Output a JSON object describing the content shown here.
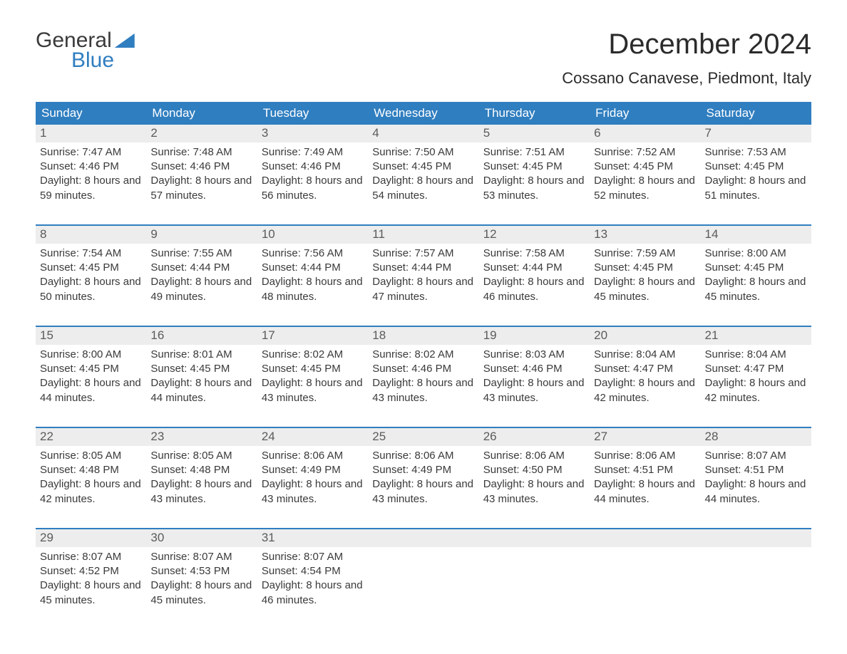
{
  "logo": {
    "top": "General",
    "bottom": "Blue"
  },
  "title": "December 2024",
  "location": "Cossano Canavese, Piedmont, Italy",
  "weekdays": [
    "Sunday",
    "Monday",
    "Tuesday",
    "Wednesday",
    "Thursday",
    "Friday",
    "Saturday"
  ],
  "colors": {
    "brand_blue": "#2f7ec0",
    "header_text": "#ffffff",
    "daynum_bg": "#ededed",
    "body_text": "#3a3a3a",
    "page_bg": "#ffffff"
  },
  "typography": {
    "title_fontsize": 40,
    "location_fontsize": 22,
    "weekday_fontsize": 17,
    "daynum_fontsize": 17,
    "cell_fontsize": 15,
    "logo_fontsize": 30
  },
  "weeks": [
    [
      {
        "n": "1",
        "sunrise": "Sunrise: 7:47 AM",
        "sunset": "Sunset: 4:46 PM",
        "daylight": "Daylight: 8 hours and 59 minutes."
      },
      {
        "n": "2",
        "sunrise": "Sunrise: 7:48 AM",
        "sunset": "Sunset: 4:46 PM",
        "daylight": "Daylight: 8 hours and 57 minutes."
      },
      {
        "n": "3",
        "sunrise": "Sunrise: 7:49 AM",
        "sunset": "Sunset: 4:46 PM",
        "daylight": "Daylight: 8 hours and 56 minutes."
      },
      {
        "n": "4",
        "sunrise": "Sunrise: 7:50 AM",
        "sunset": "Sunset: 4:45 PM",
        "daylight": "Daylight: 8 hours and 54 minutes."
      },
      {
        "n": "5",
        "sunrise": "Sunrise: 7:51 AM",
        "sunset": "Sunset: 4:45 PM",
        "daylight": "Daylight: 8 hours and 53 minutes."
      },
      {
        "n": "6",
        "sunrise": "Sunrise: 7:52 AM",
        "sunset": "Sunset: 4:45 PM",
        "daylight": "Daylight: 8 hours and 52 minutes."
      },
      {
        "n": "7",
        "sunrise": "Sunrise: 7:53 AM",
        "sunset": "Sunset: 4:45 PM",
        "daylight": "Daylight: 8 hours and 51 minutes."
      }
    ],
    [
      {
        "n": "8",
        "sunrise": "Sunrise: 7:54 AM",
        "sunset": "Sunset: 4:45 PM",
        "daylight": "Daylight: 8 hours and 50 minutes."
      },
      {
        "n": "9",
        "sunrise": "Sunrise: 7:55 AM",
        "sunset": "Sunset: 4:44 PM",
        "daylight": "Daylight: 8 hours and 49 minutes."
      },
      {
        "n": "10",
        "sunrise": "Sunrise: 7:56 AM",
        "sunset": "Sunset: 4:44 PM",
        "daylight": "Daylight: 8 hours and 48 minutes."
      },
      {
        "n": "11",
        "sunrise": "Sunrise: 7:57 AM",
        "sunset": "Sunset: 4:44 PM",
        "daylight": "Daylight: 8 hours and 47 minutes."
      },
      {
        "n": "12",
        "sunrise": "Sunrise: 7:58 AM",
        "sunset": "Sunset: 4:44 PM",
        "daylight": "Daylight: 8 hours and 46 minutes."
      },
      {
        "n": "13",
        "sunrise": "Sunrise: 7:59 AM",
        "sunset": "Sunset: 4:45 PM",
        "daylight": "Daylight: 8 hours and 45 minutes."
      },
      {
        "n": "14",
        "sunrise": "Sunrise: 8:00 AM",
        "sunset": "Sunset: 4:45 PM",
        "daylight": "Daylight: 8 hours and 45 minutes."
      }
    ],
    [
      {
        "n": "15",
        "sunrise": "Sunrise: 8:00 AM",
        "sunset": "Sunset: 4:45 PM",
        "daylight": "Daylight: 8 hours and 44 minutes."
      },
      {
        "n": "16",
        "sunrise": "Sunrise: 8:01 AM",
        "sunset": "Sunset: 4:45 PM",
        "daylight": "Daylight: 8 hours and 44 minutes."
      },
      {
        "n": "17",
        "sunrise": "Sunrise: 8:02 AM",
        "sunset": "Sunset: 4:45 PM",
        "daylight": "Daylight: 8 hours and 43 minutes."
      },
      {
        "n": "18",
        "sunrise": "Sunrise: 8:02 AM",
        "sunset": "Sunset: 4:46 PM",
        "daylight": "Daylight: 8 hours and 43 minutes."
      },
      {
        "n": "19",
        "sunrise": "Sunrise: 8:03 AM",
        "sunset": "Sunset: 4:46 PM",
        "daylight": "Daylight: 8 hours and 43 minutes."
      },
      {
        "n": "20",
        "sunrise": "Sunrise: 8:04 AM",
        "sunset": "Sunset: 4:47 PM",
        "daylight": "Daylight: 8 hours and 42 minutes."
      },
      {
        "n": "21",
        "sunrise": "Sunrise: 8:04 AM",
        "sunset": "Sunset: 4:47 PM",
        "daylight": "Daylight: 8 hours and 42 minutes."
      }
    ],
    [
      {
        "n": "22",
        "sunrise": "Sunrise: 8:05 AM",
        "sunset": "Sunset: 4:48 PM",
        "daylight": "Daylight: 8 hours and 42 minutes."
      },
      {
        "n": "23",
        "sunrise": "Sunrise: 8:05 AM",
        "sunset": "Sunset: 4:48 PM",
        "daylight": "Daylight: 8 hours and 43 minutes."
      },
      {
        "n": "24",
        "sunrise": "Sunrise: 8:06 AM",
        "sunset": "Sunset: 4:49 PM",
        "daylight": "Daylight: 8 hours and 43 minutes."
      },
      {
        "n": "25",
        "sunrise": "Sunrise: 8:06 AM",
        "sunset": "Sunset: 4:49 PM",
        "daylight": "Daylight: 8 hours and 43 minutes."
      },
      {
        "n": "26",
        "sunrise": "Sunrise: 8:06 AM",
        "sunset": "Sunset: 4:50 PM",
        "daylight": "Daylight: 8 hours and 43 minutes."
      },
      {
        "n": "27",
        "sunrise": "Sunrise: 8:06 AM",
        "sunset": "Sunset: 4:51 PM",
        "daylight": "Daylight: 8 hours and 44 minutes."
      },
      {
        "n": "28",
        "sunrise": "Sunrise: 8:07 AM",
        "sunset": "Sunset: 4:51 PM",
        "daylight": "Daylight: 8 hours and 44 minutes."
      }
    ],
    [
      {
        "n": "29",
        "sunrise": "Sunrise: 8:07 AM",
        "sunset": "Sunset: 4:52 PM",
        "daylight": "Daylight: 8 hours and 45 minutes."
      },
      {
        "n": "30",
        "sunrise": "Sunrise: 8:07 AM",
        "sunset": "Sunset: 4:53 PM",
        "daylight": "Daylight: 8 hours and 45 minutes."
      },
      {
        "n": "31",
        "sunrise": "Sunrise: 8:07 AM",
        "sunset": "Sunset: 4:54 PM",
        "daylight": "Daylight: 8 hours and 46 minutes."
      },
      {
        "empty": true
      },
      {
        "empty": true
      },
      {
        "empty": true
      },
      {
        "empty": true
      }
    ]
  ]
}
